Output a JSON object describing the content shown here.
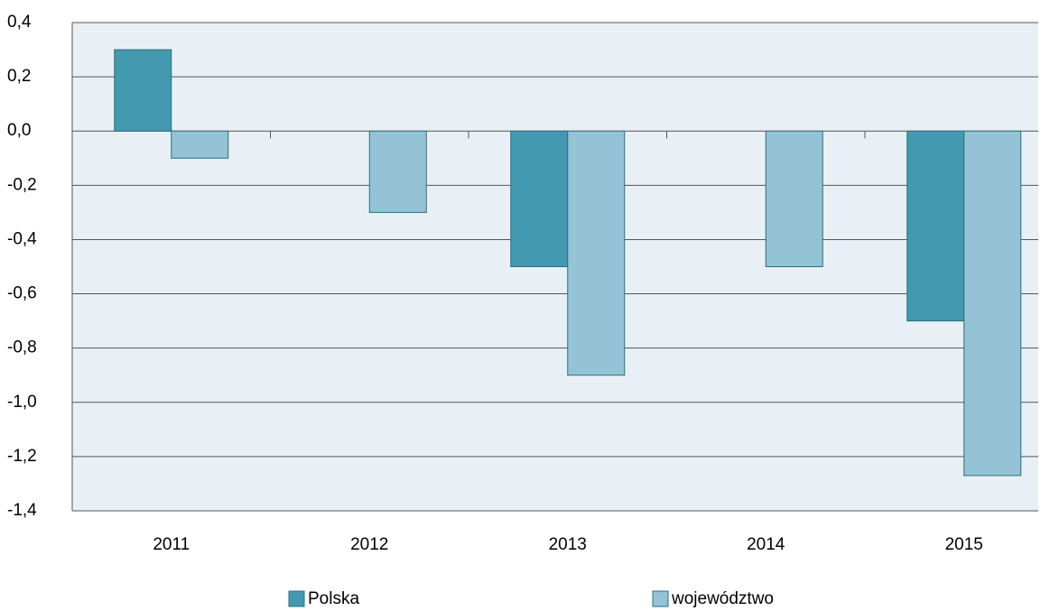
{
  "chart_data": {
    "type": "bar",
    "categories": [
      "2011",
      "2012",
      "2013",
      "2014",
      "2015"
    ],
    "series": [
      {
        "name": "Polska",
        "color": "#4299b0",
        "values": [
          0.3,
          0,
          -0.5,
          0,
          -0.7
        ]
      },
      {
        "name": "województwo",
        "color": "#93c3d5",
        "values": [
          -0.1,
          -0.3,
          -0.9,
          -0.5,
          -1.27
        ]
      }
    ],
    "ylim": [
      -1.4,
      0.4
    ],
    "yticks": [
      {
        "value": -1.4,
        "label": "-1,4"
      },
      {
        "value": -1.2,
        "label": "-1,2"
      },
      {
        "value": -1.0,
        "label": "-1,0"
      },
      {
        "value": -0.8,
        "label": "-0,8"
      },
      {
        "value": -0.6,
        "label": "-0,6"
      },
      {
        "value": -0.4,
        "label": "-0,4"
      },
      {
        "value": -0.2,
        "label": "-0,2"
      },
      {
        "value": 0,
        "label": "0,0"
      },
      {
        "value": 0.2,
        "label": "0,2"
      },
      {
        "value": 0.4,
        "label": "0,4"
      }
    ],
    "grid": true,
    "legend": "bottom"
  }
}
